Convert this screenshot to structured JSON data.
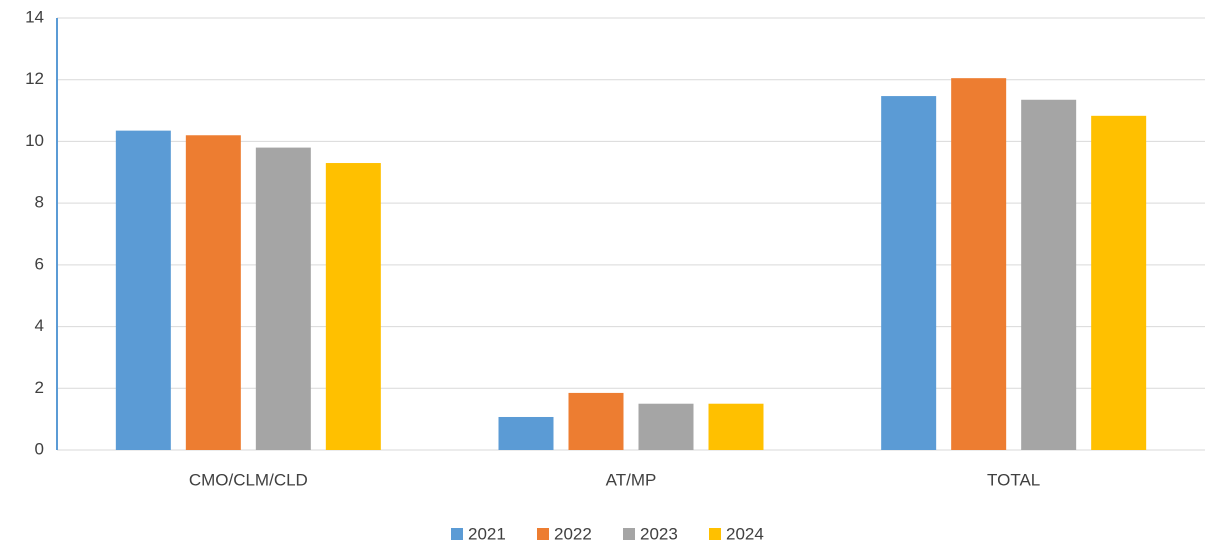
{
  "chart_data": {
    "type": "bar",
    "categories": [
      "CMO/CLM/CLD",
      "AT/MP",
      "TOTAL"
    ],
    "series": [
      {
        "name": "2021",
        "color": "#5b9bd5",
        "values": [
          10.35,
          1.07,
          11.47
        ]
      },
      {
        "name": "2022",
        "color": "#ed7d31",
        "values": [
          10.2,
          1.85,
          12.05
        ]
      },
      {
        "name": "2023",
        "color": "#a5a5a5",
        "values": [
          9.8,
          1.5,
          11.35
        ]
      },
      {
        "name": "2024",
        "color": "#ffc000",
        "values": [
          9.3,
          1.5,
          10.83
        ]
      }
    ],
    "ylim": [
      0,
      14
    ],
    "yticks": [
      0,
      2,
      4,
      6,
      8,
      10,
      12,
      14
    ],
    "grid": true,
    "legend": "bottom"
  }
}
